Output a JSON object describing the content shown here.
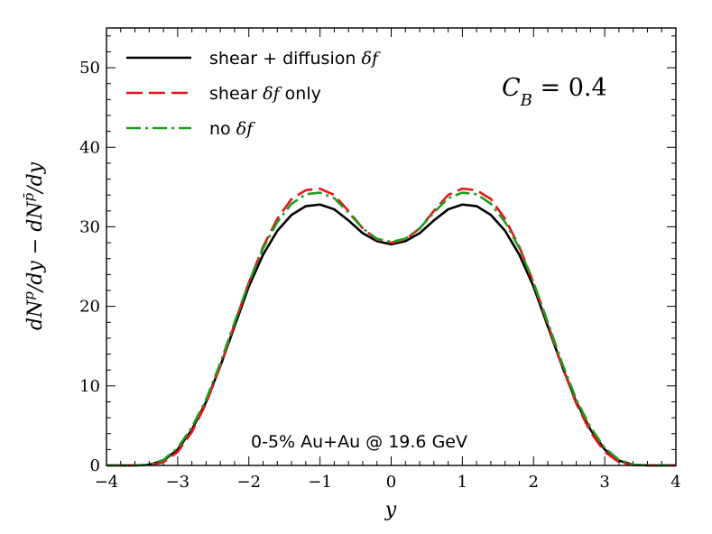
{
  "chart_data": {
    "type": "line",
    "xlabel": "y",
    "ylabel": "dN^p/dy − dN^p̄/dy",
    "xlim": [
      -4,
      4
    ],
    "ylim": [
      0,
      55
    ],
    "xticks": [
      -4,
      -3,
      -2,
      -1,
      0,
      1,
      2,
      3,
      4
    ],
    "xtick_labels": [
      "−4",
      "−3",
      "−2",
      "−1",
      "0",
      "1",
      "2",
      "3",
      "4"
    ],
    "yticks": [
      0,
      10,
      20,
      30,
      40,
      50
    ],
    "ytick_labels": [
      "0",
      "10",
      "20",
      "30",
      "40",
      "50"
    ],
    "grid": false,
    "legend_position": "top-left",
    "x": [
      -4.0,
      -3.6,
      -3.4,
      -3.2,
      -3.0,
      -2.8,
      -2.6,
      -2.4,
      -2.2,
      -2.0,
      -1.8,
      -1.6,
      -1.4,
      -1.2,
      -1.0,
      -0.8,
      -0.6,
      -0.4,
      -0.2,
      0.0,
      0.2,
      0.4,
      0.6,
      0.8,
      1.0,
      1.2,
      1.4,
      1.6,
      1.8,
      2.0,
      2.2,
      2.4,
      2.6,
      2.8,
      3.0,
      3.2,
      3.4,
      3.6,
      4.0
    ],
    "series": [
      {
        "name": "shear + diffusion δf",
        "color": "#000000",
        "dash": "solid",
        "values": [
          0.0,
          0.0,
          0.1,
          0.6,
          2.0,
          4.5,
          8.0,
          12.5,
          17.5,
          22.5,
          26.5,
          29.5,
          31.5,
          32.6,
          32.8,
          32.2,
          30.8,
          29.2,
          28.2,
          27.8,
          28.2,
          29.2,
          30.8,
          32.2,
          32.8,
          32.6,
          31.5,
          29.5,
          26.5,
          22.5,
          17.5,
          12.5,
          8.0,
          4.5,
          2.0,
          0.6,
          0.1,
          0.0,
          0.0
        ]
      },
      {
        "name": "shear δf only",
        "color": "#e8121a",
        "dash": "long-dash",
        "values": [
          0.0,
          0.0,
          0.05,
          0.4,
          1.7,
          4.2,
          7.8,
          12.5,
          17.8,
          23.0,
          27.5,
          31.0,
          33.5,
          34.6,
          34.8,
          34.0,
          32.0,
          29.8,
          28.4,
          28.0,
          28.4,
          29.8,
          32.0,
          34.0,
          34.8,
          34.6,
          33.5,
          31.0,
          27.5,
          23.0,
          17.8,
          12.5,
          7.8,
          4.2,
          1.7,
          0.4,
          0.05,
          0.0,
          0.0
        ]
      },
      {
        "name": "no δf",
        "color": "#1f9b1f",
        "dash": "dash-dot",
        "values": [
          0.0,
          0.0,
          0.1,
          0.7,
          2.2,
          4.8,
          8.3,
          12.9,
          18.0,
          23.0,
          27.3,
          30.6,
          32.9,
          34.1,
          34.3,
          33.6,
          31.8,
          29.8,
          28.5,
          28.1,
          28.5,
          29.8,
          31.8,
          33.6,
          34.3,
          34.1,
          32.9,
          30.6,
          27.3,
          23.0,
          18.0,
          12.9,
          8.3,
          4.8,
          2.2,
          0.7,
          0.1,
          0.0,
          0.0
        ]
      }
    ],
    "legend": [
      {
        "prefix": "shear + diffusion ",
        "math": "δf",
        "suffix": ""
      },
      {
        "prefix": "shear ",
        "math": "δf",
        "suffix": " only"
      },
      {
        "prefix": "no ",
        "math": "δf",
        "suffix": ""
      }
    ],
    "annotations": {
      "coefficient": "C_B = 0.4",
      "coefficient_symbol": "C",
      "coefficient_subscript": "B",
      "coefficient_rest": " = 0.4",
      "collision": "0-5% Au+Au @ 19.6 GeV"
    }
  }
}
